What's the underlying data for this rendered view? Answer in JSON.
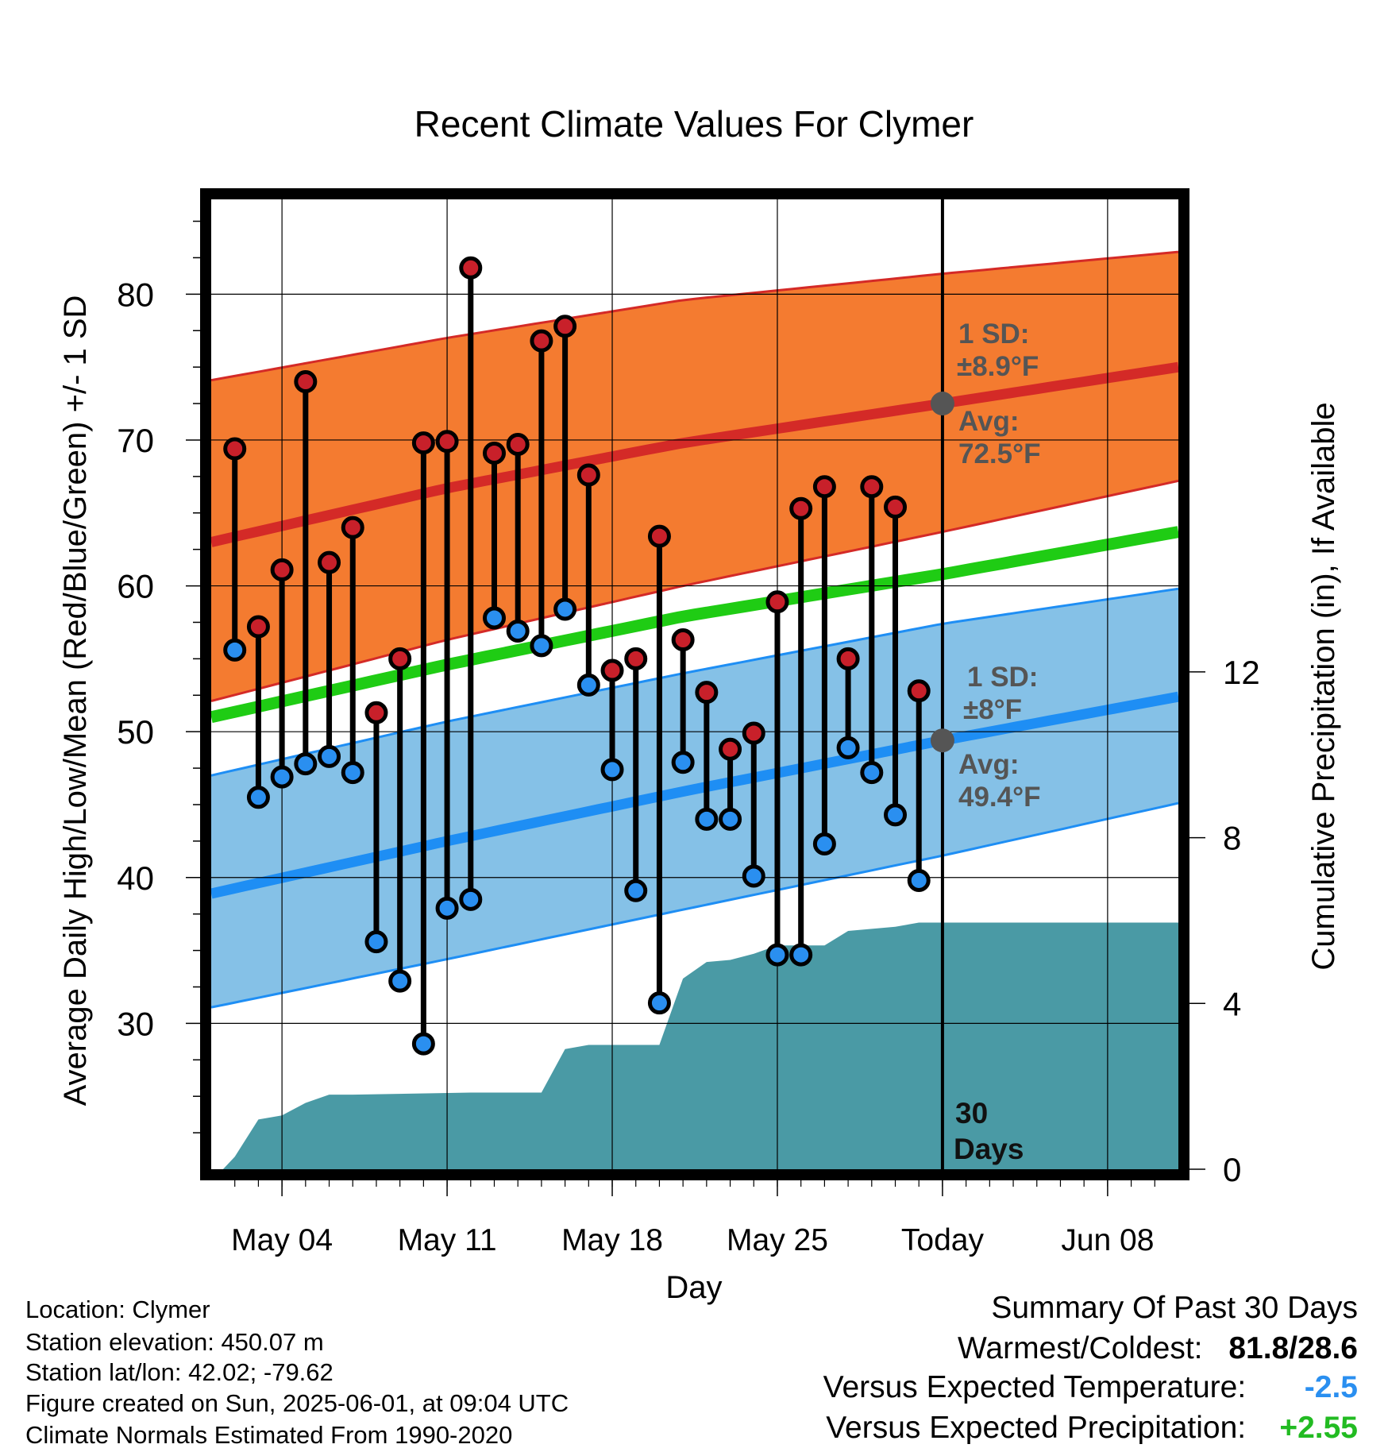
{
  "chart_data": {
    "type": "line",
    "title": "Recent Climate Values For Clymer",
    "xlabel": "Day",
    "ylabel": "Average Daily High/Low/Mean (Red/Blue/Green) +/- 1 SD",
    "y2label": "Cumulative Precipitation (in), If Available",
    "ylim": [
      20,
      86.5
    ],
    "y2lim": [
      0,
      23.4
    ],
    "yticks": [
      30,
      40,
      50,
      60,
      70,
      80
    ],
    "y2ticks": [
      0,
      4,
      8,
      12
    ],
    "xlim": [
      "2025-05-01",
      "2025-06-11"
    ],
    "xticks": [
      {
        "date": "2025-05-04",
        "label": "May 04"
      },
      {
        "date": "2025-05-11",
        "label": "May 11"
      },
      {
        "date": "2025-05-18",
        "label": "May 18"
      },
      {
        "date": "2025-05-25",
        "label": "May 25"
      },
      {
        "date": "2025-06-01",
        "label": "Today"
      },
      {
        "date": "2025-06-08",
        "label": "Jun 08"
      }
    ],
    "grid": true,
    "today": "2025-06-01",
    "period_label": [
      "30",
      "Days"
    ],
    "colors": {
      "high_band": "#f47b30",
      "high_mean": "#d42a27",
      "low_band": "#85c1e7",
      "low_mean": "#1e8ef4",
      "mean": "#1fcc14",
      "precip": "#4a9aa5",
      "marker_high": "#c8202a",
      "marker_low": "#2a8ff0",
      "annotation": "#555555"
    },
    "normal_high": {
      "dates": [
        "2025-05-01",
        "2025-05-11",
        "2025-05-21",
        "2025-06-01",
        "2025-06-11"
      ],
      "avg": [
        63.0,
        66.7,
        69.8,
        72.5,
        75.0
      ],
      "upper": [
        74.1,
        77.0,
        79.6,
        81.4,
        82.9
      ],
      "lower": [
        52.1,
        56.3,
        60.0,
        63.7,
        67.2
      ]
    },
    "normal_low": {
      "dates": [
        "2025-05-01",
        "2025-05-11",
        "2025-05-21",
        "2025-06-01",
        "2025-06-11"
      ],
      "avg": [
        38.9,
        42.5,
        45.9,
        49.4,
        52.4
      ],
      "upper": [
        47.0,
        50.7,
        54.0,
        57.4,
        59.8
      ],
      "lower": [
        31.1,
        34.4,
        37.8,
        41.5,
        45.1
      ]
    },
    "normal_mean": {
      "dates": [
        "2025-05-01",
        "2025-05-11",
        "2025-05-21",
        "2025-06-01",
        "2025-06-11"
      ],
      "values": [
        51.0,
        54.6,
        57.9,
        60.8,
        63.7
      ]
    },
    "high_annotation": {
      "sd_label": "1 SD:",
      "sd_value": "±8.9°F",
      "avg_label": "Avg:",
      "avg_value": "72.5°F"
    },
    "low_annotation": {
      "sd_label": "1 SD:",
      "sd_value": "±8°F",
      "avg_label": "Avg:",
      "avg_value": "49.4°F"
    },
    "daily": {
      "dates": [
        "2025-05-02",
        "2025-05-03",
        "2025-05-04",
        "2025-05-05",
        "2025-05-06",
        "2025-05-07",
        "2025-05-08",
        "2025-05-09",
        "2025-05-10",
        "2025-05-11",
        "2025-05-12",
        "2025-05-13",
        "2025-05-14",
        "2025-05-15",
        "2025-05-16",
        "2025-05-17",
        "2025-05-18",
        "2025-05-19",
        "2025-05-20",
        "2025-05-21",
        "2025-05-22",
        "2025-05-23",
        "2025-05-24",
        "2025-05-25",
        "2025-05-26",
        "2025-05-27",
        "2025-05-28",
        "2025-05-29",
        "2025-05-30",
        "2025-05-31"
      ],
      "high": [
        69.4,
        57.2,
        61.1,
        74.0,
        61.6,
        64.0,
        51.3,
        55.0,
        69.8,
        69.9,
        81.8,
        69.1,
        69.7,
        76.8,
        77.8,
        67.6,
        54.2,
        55.0,
        63.4,
        56.3,
        52.7,
        48.8,
        49.9,
        58.9,
        65.3,
        66.8,
        55.0,
        66.8,
        65.4,
        52.8
      ],
      "low": [
        55.6,
        45.5,
        46.9,
        47.8,
        48.3,
        47.2,
        35.6,
        32.9,
        28.6,
        37.9,
        38.5,
        57.8,
        56.9,
        55.9,
        58.4,
        53.2,
        47.4,
        39.1,
        31.4,
        47.9,
        44.0,
        44.0,
        40.1,
        34.7,
        34.7,
        42.3,
        48.9,
        47.2,
        44.3,
        39.8
      ]
    },
    "precip_cumulative": {
      "dates": [
        "2025-05-01",
        "2025-05-01.5",
        "2025-05-02",
        "2025-05-03",
        "2025-05-04",
        "2025-05-05",
        "2025-05-06",
        "2025-05-07",
        "2025-05-12",
        "2025-05-15",
        "2025-05-16",
        "2025-05-17",
        "2025-05-20",
        "2025-05-21",
        "2025-05-22",
        "2025-05-23",
        "2025-05-24",
        "2025-05-25",
        "2025-05-27",
        "2025-05-28",
        "2025-05-30",
        "2025-05-31",
        "2025-06-11"
      ],
      "values": [
        0.0,
        0.0,
        0.3,
        1.2,
        1.3,
        1.6,
        1.8,
        1.8,
        1.85,
        1.85,
        2.9,
        3.0,
        3.0,
        4.6,
        5.0,
        5.05,
        5.2,
        5.4,
        5.4,
        5.75,
        5.85,
        5.95,
        5.95
      ]
    }
  },
  "info": [
    "Location: Clymer",
    "Station elevation: 450.07 m",
    "Station lat/lon: 42.02; -79.62",
    "Figure created on Sun, 2025-06-01, at 09:04 UTC",
    "Climate Normals Estimated From 1990-2020"
  ],
  "summary": {
    "title": "Summary Of Past 30 Days",
    "warmest_coldest_label": "Warmest/Coldest:",
    "warmest_coldest_value": "81.8/28.6",
    "temp_label": "Versus Expected Temperature:",
    "temp_value": "-2.5",
    "temp_color": "#2a8ff0",
    "precip_label": "Versus Expected Precipitation:",
    "precip_value": "+2.55",
    "precip_color": "#22bb22"
  }
}
